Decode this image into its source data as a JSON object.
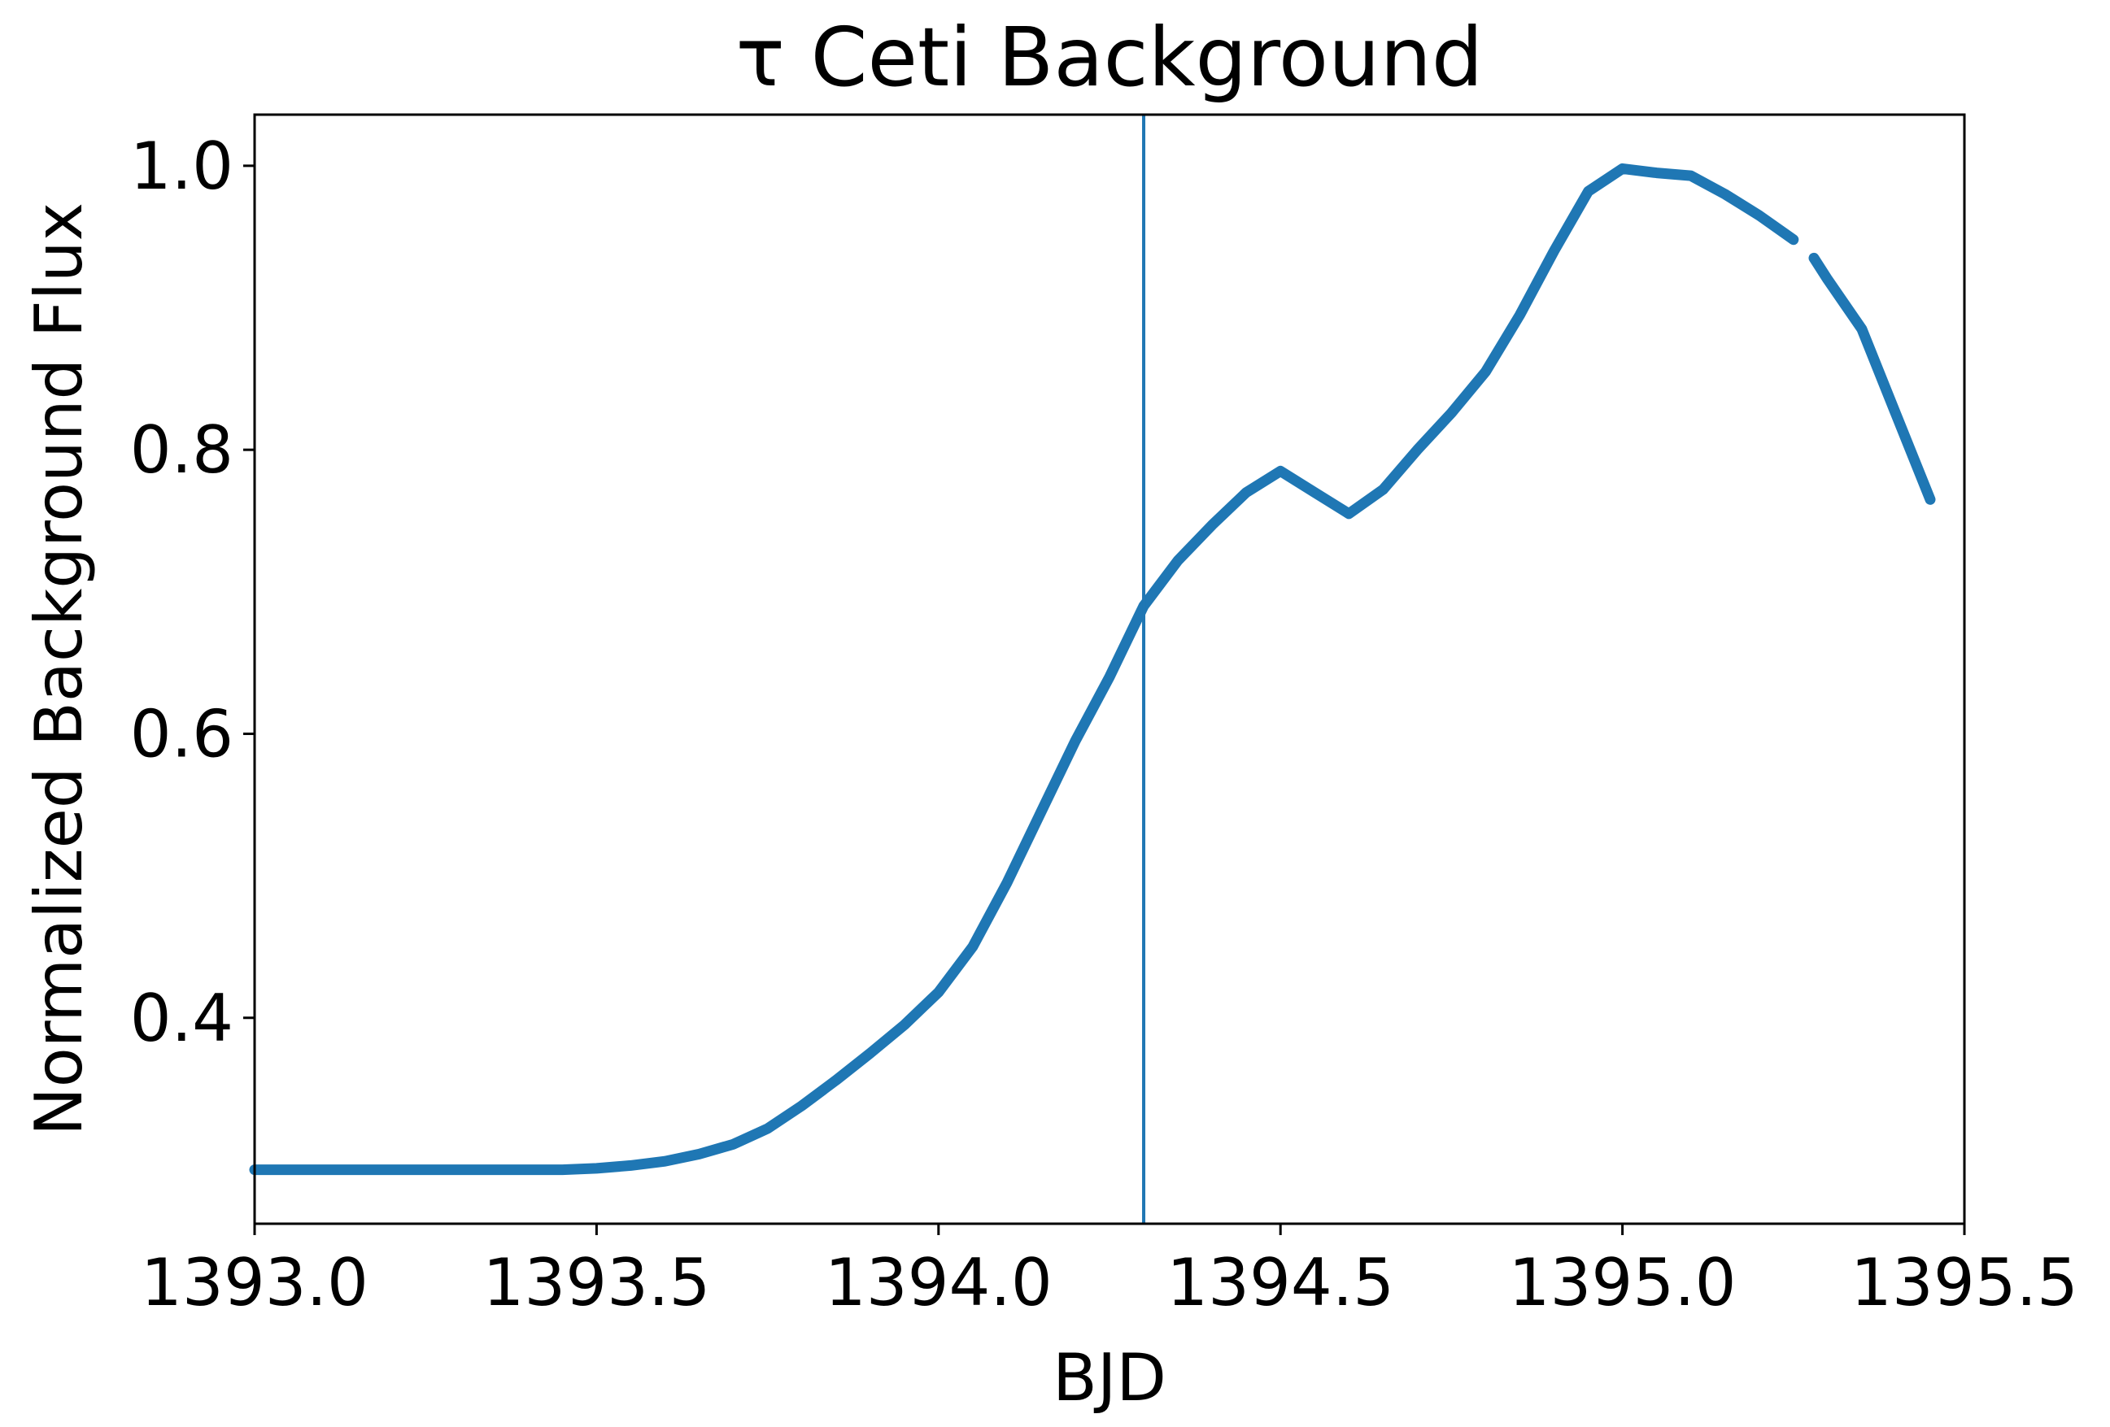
{
  "chart_data": {
    "type": "line",
    "title": "τ Ceti Background",
    "xlabel": "BJD",
    "ylabel": "Normalized Background Flux",
    "x": [
      1393.0,
      1393.05,
      1393.1,
      1393.15,
      1393.2,
      1393.25,
      1393.3,
      1393.35,
      1393.4,
      1393.45,
      1393.5,
      1393.55,
      1393.6,
      1393.65,
      1393.7,
      1393.75,
      1393.8,
      1393.85,
      1393.9,
      1393.95,
      1394.0,
      1394.05,
      1394.1,
      1394.15,
      1394.2,
      1394.25,
      1394.3,
      1394.35,
      1394.4,
      1394.45,
      1394.5,
      1394.55,
      1394.6,
      1394.65,
      1394.7,
      1394.75,
      1394.8,
      1394.85,
      1394.9,
      1394.95,
      1395.0,
      1395.05,
      1395.1,
      1395.15,
      1395.2,
      1395.25,
      1395.265,
      1395.28,
      1395.3,
      1395.35,
      1395.4,
      1395.45
    ],
    "series": [
      {
        "color": "#1f77b4",
        "values": [
          0.293,
          0.293,
          0.293,
          0.293,
          0.293,
          0.293,
          0.293,
          0.293,
          0.293,
          0.293,
          0.294,
          0.296,
          0.299,
          0.304,
          0.311,
          0.322,
          0.338,
          0.356,
          0.375,
          0.395,
          0.418,
          0.45,
          0.495,
          0.545,
          0.595,
          0.64,
          0.69,
          0.722,
          0.747,
          0.77,
          0.785,
          0.77,
          0.755,
          0.772,
          0.8,
          0.826,
          0.855,
          0.895,
          0.94,
          0.982,
          0.998,
          0.995,
          0.993,
          0.98,
          0.965,
          0.948,
          null,
          0.935,
          0.92,
          0.885,
          0.825,
          0.765
        ]
      }
    ],
    "vline": 1394.3,
    "xlim": [
      1393.0,
      1395.5
    ],
    "xticks": [
      {
        "value": 1393.0,
        "label": "1393.0"
      },
      {
        "value": 1393.5,
        "label": "1393.5"
      },
      {
        "value": 1394.0,
        "label": "1394.0"
      },
      {
        "value": 1394.5,
        "label": "1394.5"
      },
      {
        "value": 1395.0,
        "label": "1395.0"
      },
      {
        "value": 1395.5,
        "label": "1395.5"
      }
    ],
    "ylim": [
      0.255,
      1.036
    ],
    "yticks": [
      0.4,
      0.6,
      0.8,
      {
        "value": 1.0,
        "label": "1.0"
      }
    ]
  }
}
